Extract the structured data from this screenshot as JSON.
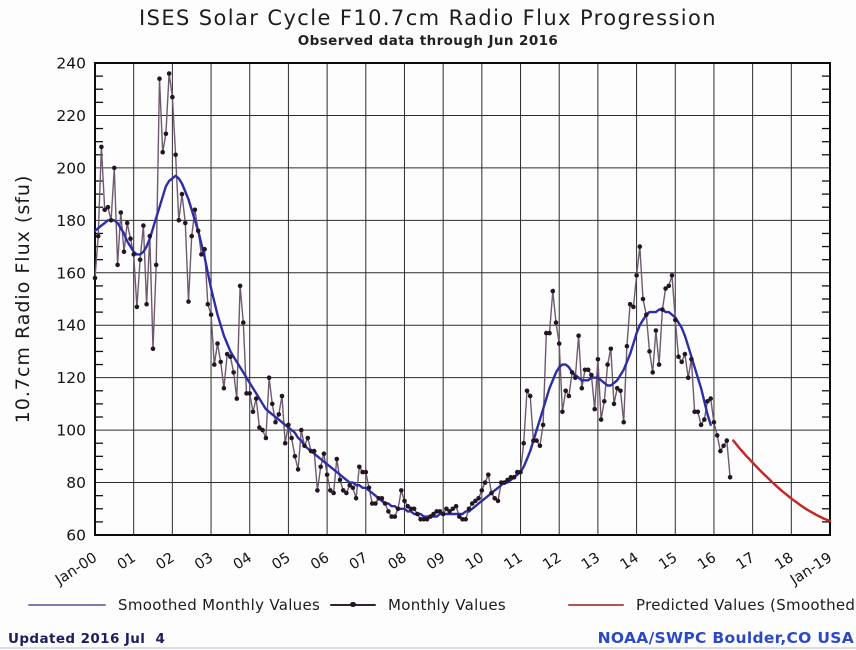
{
  "page": {
    "title": "ISES Solar Cycle F10.7cm Radio Flux Progression",
    "subtitle": "Observed data through Jun 2016"
  },
  "legend": [
    {
      "label": "Smoothed Monthly Values",
      "color": "#7d7dae",
      "style": "line"
    },
    {
      "label": "Monthly Values",
      "color": "#32202e",
      "dot_color": "#241424",
      "style": "line-dot"
    },
    {
      "label": "Predicted Values (Smoothed)",
      "color": "#b35454",
      "style": "line"
    }
  ],
  "footer": {
    "updated": "Updated 2016 Jul  4",
    "source": "NOAA/SWPC Boulder,CO USA"
  },
  "chart_data": {
    "type": "line",
    "title": "ISES Solar Cycle F10.7cm Radio Flux Progression",
    "subtitle": "Observed data through Jun 2016",
    "xlabel": "",
    "ylabel": "10.7cm Radio Flux (sfu)",
    "ylim": [
      60,
      240
    ],
    "yticks": [
      60,
      80,
      100,
      120,
      140,
      160,
      180,
      200,
      220,
      240
    ],
    "y_minor_tick_step": 5,
    "x_start_year": 2000,
    "x_end_year": 2019,
    "xtick_labels": [
      "Jan-00",
      "01",
      "02",
      "03",
      "04",
      "05",
      "06",
      "07",
      "08",
      "09",
      "10",
      "11",
      "12",
      "13",
      "14",
      "15",
      "16",
      "17",
      "18",
      "Jan-19"
    ],
    "grid": true,
    "legend_position": "bottom",
    "series": [
      {
        "name": "Smoothed Monthly Values",
        "color": "#2d2da8",
        "line_width": 2.4,
        "start": "2000-01",
        "cadence": "monthly",
        "values": [
          176,
          177,
          178,
          179,
          180,
          180,
          180,
          179,
          177,
          175,
          172,
          170,
          168,
          167,
          167,
          168,
          170,
          173,
          177,
          181,
          185,
          189,
          193,
          195,
          196,
          197,
          196,
          194,
          191,
          188,
          184,
          180,
          176,
          171,
          166,
          160,
          154,
          149,
          144,
          140,
          136,
          133,
          130,
          128,
          126,
          124,
          122,
          120,
          118,
          116,
          114,
          112,
          110,
          108,
          107,
          106,
          105,
          104,
          103,
          102,
          101,
          100,
          99,
          97,
          96,
          94,
          93,
          92,
          91,
          90,
          89,
          88,
          87,
          86,
          85,
          84,
          83,
          82,
          81,
          80,
          80,
          79,
          79,
          78,
          78,
          77,
          76,
          75,
          74,
          73,
          72,
          72,
          71,
          71,
          70,
          70,
          70,
          69,
          69,
          68,
          68,
          68,
          67,
          67,
          67,
          67,
          67,
          68,
          68,
          68,
          68,
          68,
          68,
          68,
          68,
          69,
          69,
          70,
          71,
          72,
          73,
          74,
          75,
          76,
          77,
          78,
          79,
          80,
          80,
          81,
          82,
          83,
          84,
          86,
          89,
          92,
          96,
          100,
          104,
          108,
          112,
          116,
          119,
          122,
          124,
          125,
          125,
          124,
          122,
          121,
          120,
          119,
          119,
          119,
          120,
          120,
          120,
          119,
          118,
          117,
          117,
          118,
          119,
          121,
          123,
          126,
          129,
          133,
          137,
          140,
          142,
          144,
          145,
          145,
          145,
          146,
          146,
          145,
          145,
          144,
          143,
          141,
          139,
          136,
          132,
          128,
          124,
          120,
          116,
          111,
          106,
          102
        ]
      },
      {
        "name": "Monthly Values",
        "color": "#6e5a6e",
        "dot_color": "#241424",
        "line_width": 1.4,
        "start": "2000-01",
        "cadence": "monthly",
        "values": [
          158,
          174,
          208,
          184,
          185,
          180,
          200,
          163,
          183,
          168,
          179,
          173,
          167,
          147,
          165,
          178,
          148,
          174,
          131,
          163,
          234,
          206,
          213,
          236,
          227,
          205,
          180,
          190,
          179,
          149,
          174,
          184,
          176,
          167,
          169,
          148,
          144,
          125,
          133,
          126,
          116,
          129,
          128,
          122,
          112,
          155,
          141,
          114,
          114,
          107,
          112,
          101,
          100,
          97,
          120,
          110,
          103,
          106,
          113,
          95,
          102,
          97,
          90,
          85,
          100,
          94,
          97,
          92,
          92,
          77,
          86,
          91,
          83,
          77,
          76,
          89,
          81,
          77,
          76,
          79,
          78,
          74,
          86,
          84,
          84,
          78,
          72,
          72,
          74,
          74,
          72,
          69,
          67,
          67,
          70,
          77,
          73,
          71,
          70,
          70,
          68,
          66,
          66,
          66,
          67,
          68,
          69,
          69,
          68,
          70,
          69,
          70,
          71,
          67,
          66,
          66,
          70,
          72,
          73,
          74,
          77,
          80,
          83,
          76,
          74,
          73,
          80,
          80,
          81,
          82,
          82,
          84,
          84,
          95,
          115,
          113,
          96,
          96,
          94,
          102,
          137,
          137,
          153,
          141,
          133,
          107,
          115,
          113,
          122,
          120,
          136,
          116,
          123,
          123,
          121,
          108,
          127,
          104,
          111,
          125,
          131,
          110,
          116,
          115,
          103,
          132,
          148,
          147,
          159,
          170,
          150,
          144,
          130,
          122,
          138,
          125,
          146,
          154,
          155,
          159,
          142,
          128,
          126,
          129,
          120,
          127,
          107,
          107,
          102,
          104,
          111,
          112,
          103,
          98,
          92,
          94,
          96,
          82
        ]
      },
      {
        "name": "Predicted Values (Smoothed)",
        "color": "#c62828",
        "line_width": 2.5,
        "start": "2016-07",
        "cadence": "monthly",
        "values": [
          96.0,
          94.5,
          93.0,
          91.6,
          90.2,
          88.9,
          87.6,
          86.3,
          85.0,
          83.8,
          82.6,
          81.4,
          80.2,
          79.1,
          78.0,
          76.9,
          75.9,
          74.9,
          73.9,
          73.0,
          72.1,
          71.2,
          70.4,
          69.6,
          68.9,
          68.2,
          67.5,
          66.9,
          66.3,
          65.8,
          65.4
        ]
      }
    ]
  }
}
